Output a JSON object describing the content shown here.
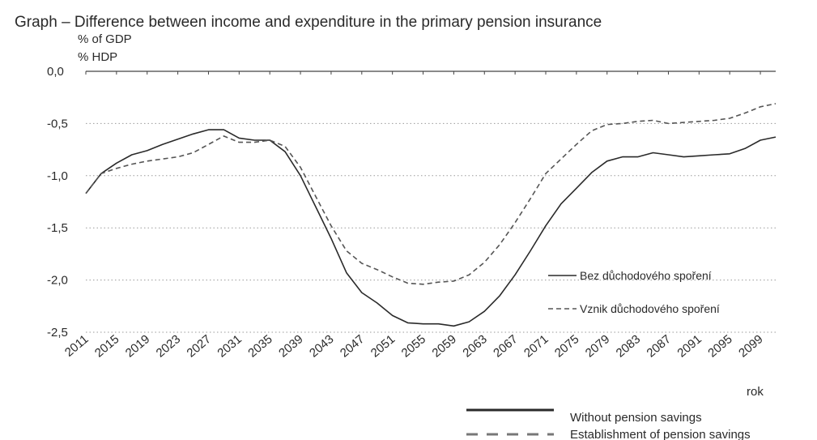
{
  "chart_data": {
    "type": "line",
    "title": "Graph – Difference between income and expenditure in the primary pension insurance",
    "ylabel": "% of GDP",
    "ylabel_local": "% HDP",
    "xlabel": "rok",
    "ylim": [
      -2.5,
      0.0
    ],
    "xlim": [
      2011,
      2101
    ],
    "yticks": [
      "0,0",
      "-0,5",
      "-1,0",
      "-1,5",
      "-2,0",
      "-2,5"
    ],
    "ytick_values": [
      0.0,
      -0.5,
      -1.0,
      -1.5,
      -2.0,
      -2.5
    ],
    "xticks": [
      "2011",
      "2015",
      "2019",
      "2023",
      "2027",
      "2031",
      "2035",
      "2039",
      "2043",
      "2047",
      "2051",
      "2055",
      "2059",
      "2063",
      "2067",
      "2071",
      "2075",
      "2079",
      "2083",
      "2087",
      "2091",
      "2095",
      "2099"
    ],
    "grid": "horizontal-dotted",
    "legend_inner": [
      "Bez důchodového spoření",
      "Vznik důchodového spoření"
    ],
    "legend_outer": [
      "Without pension savings",
      "Establishment of pension savings"
    ],
    "series": [
      {
        "name": "Without pension savings",
        "style": "solid",
        "color": "#2a2a2a",
        "x": [
          2011,
          2013,
          2015,
          2017,
          2019,
          2021,
          2023,
          2025,
          2027,
          2029,
          2031,
          2033,
          2035,
          2037,
          2039,
          2041,
          2043,
          2045,
          2047,
          2049,
          2051,
          2053,
          2055,
          2057,
          2059,
          2061,
          2063,
          2065,
          2067,
          2069,
          2071,
          2073,
          2075,
          2077,
          2079,
          2081,
          2083,
          2085,
          2087,
          2089,
          2091,
          2093,
          2095,
          2097,
          2099,
          2101
        ],
        "y": [
          -1.17,
          -0.98,
          -0.88,
          -0.8,
          -0.76,
          -0.7,
          -0.65,
          -0.6,
          -0.56,
          -0.56,
          -0.64,
          -0.66,
          -0.66,
          -0.77,
          -1.0,
          -1.3,
          -1.6,
          -1.93,
          -2.12,
          -2.22,
          -2.34,
          -2.41,
          -2.42,
          -2.42,
          -2.44,
          -2.4,
          -2.3,
          -2.15,
          -1.95,
          -1.72,
          -1.48,
          -1.27,
          -1.12,
          -0.97,
          -0.86,
          -0.82,
          -0.82,
          -0.78,
          -0.8,
          -0.82,
          -0.81,
          -0.8,
          -0.79,
          -0.74,
          -0.66,
          -0.63
        ]
      },
      {
        "name": "Establishment of pension savings",
        "style": "dashed",
        "color": "#555555",
        "x": [
          2011,
          2013,
          2015,
          2017,
          2019,
          2021,
          2023,
          2025,
          2027,
          2029,
          2031,
          2033,
          2035,
          2037,
          2039,
          2041,
          2043,
          2045,
          2047,
          2049,
          2051,
          2053,
          2055,
          2057,
          2059,
          2061,
          2063,
          2065,
          2067,
          2069,
          2071,
          2073,
          2075,
          2077,
          2079,
          2081,
          2083,
          2085,
          2087,
          2089,
          2091,
          2093,
          2095,
          2097,
          2099,
          2101
        ],
        "y": [
          -1.17,
          -0.98,
          -0.93,
          -0.89,
          -0.86,
          -0.84,
          -0.82,
          -0.78,
          -0.7,
          -0.62,
          -0.68,
          -0.68,
          -0.66,
          -0.72,
          -0.92,
          -1.2,
          -1.48,
          -1.72,
          -1.84,
          -1.9,
          -1.97,
          -2.03,
          -2.04,
          -2.02,
          -2.01,
          -1.95,
          -1.83,
          -1.66,
          -1.45,
          -1.22,
          -0.98,
          -0.84,
          -0.7,
          -0.57,
          -0.51,
          -0.5,
          -0.48,
          -0.47,
          -0.5,
          -0.49,
          -0.48,
          -0.47,
          -0.45,
          -0.4,
          -0.34,
          -0.31
        ]
      }
    ]
  }
}
